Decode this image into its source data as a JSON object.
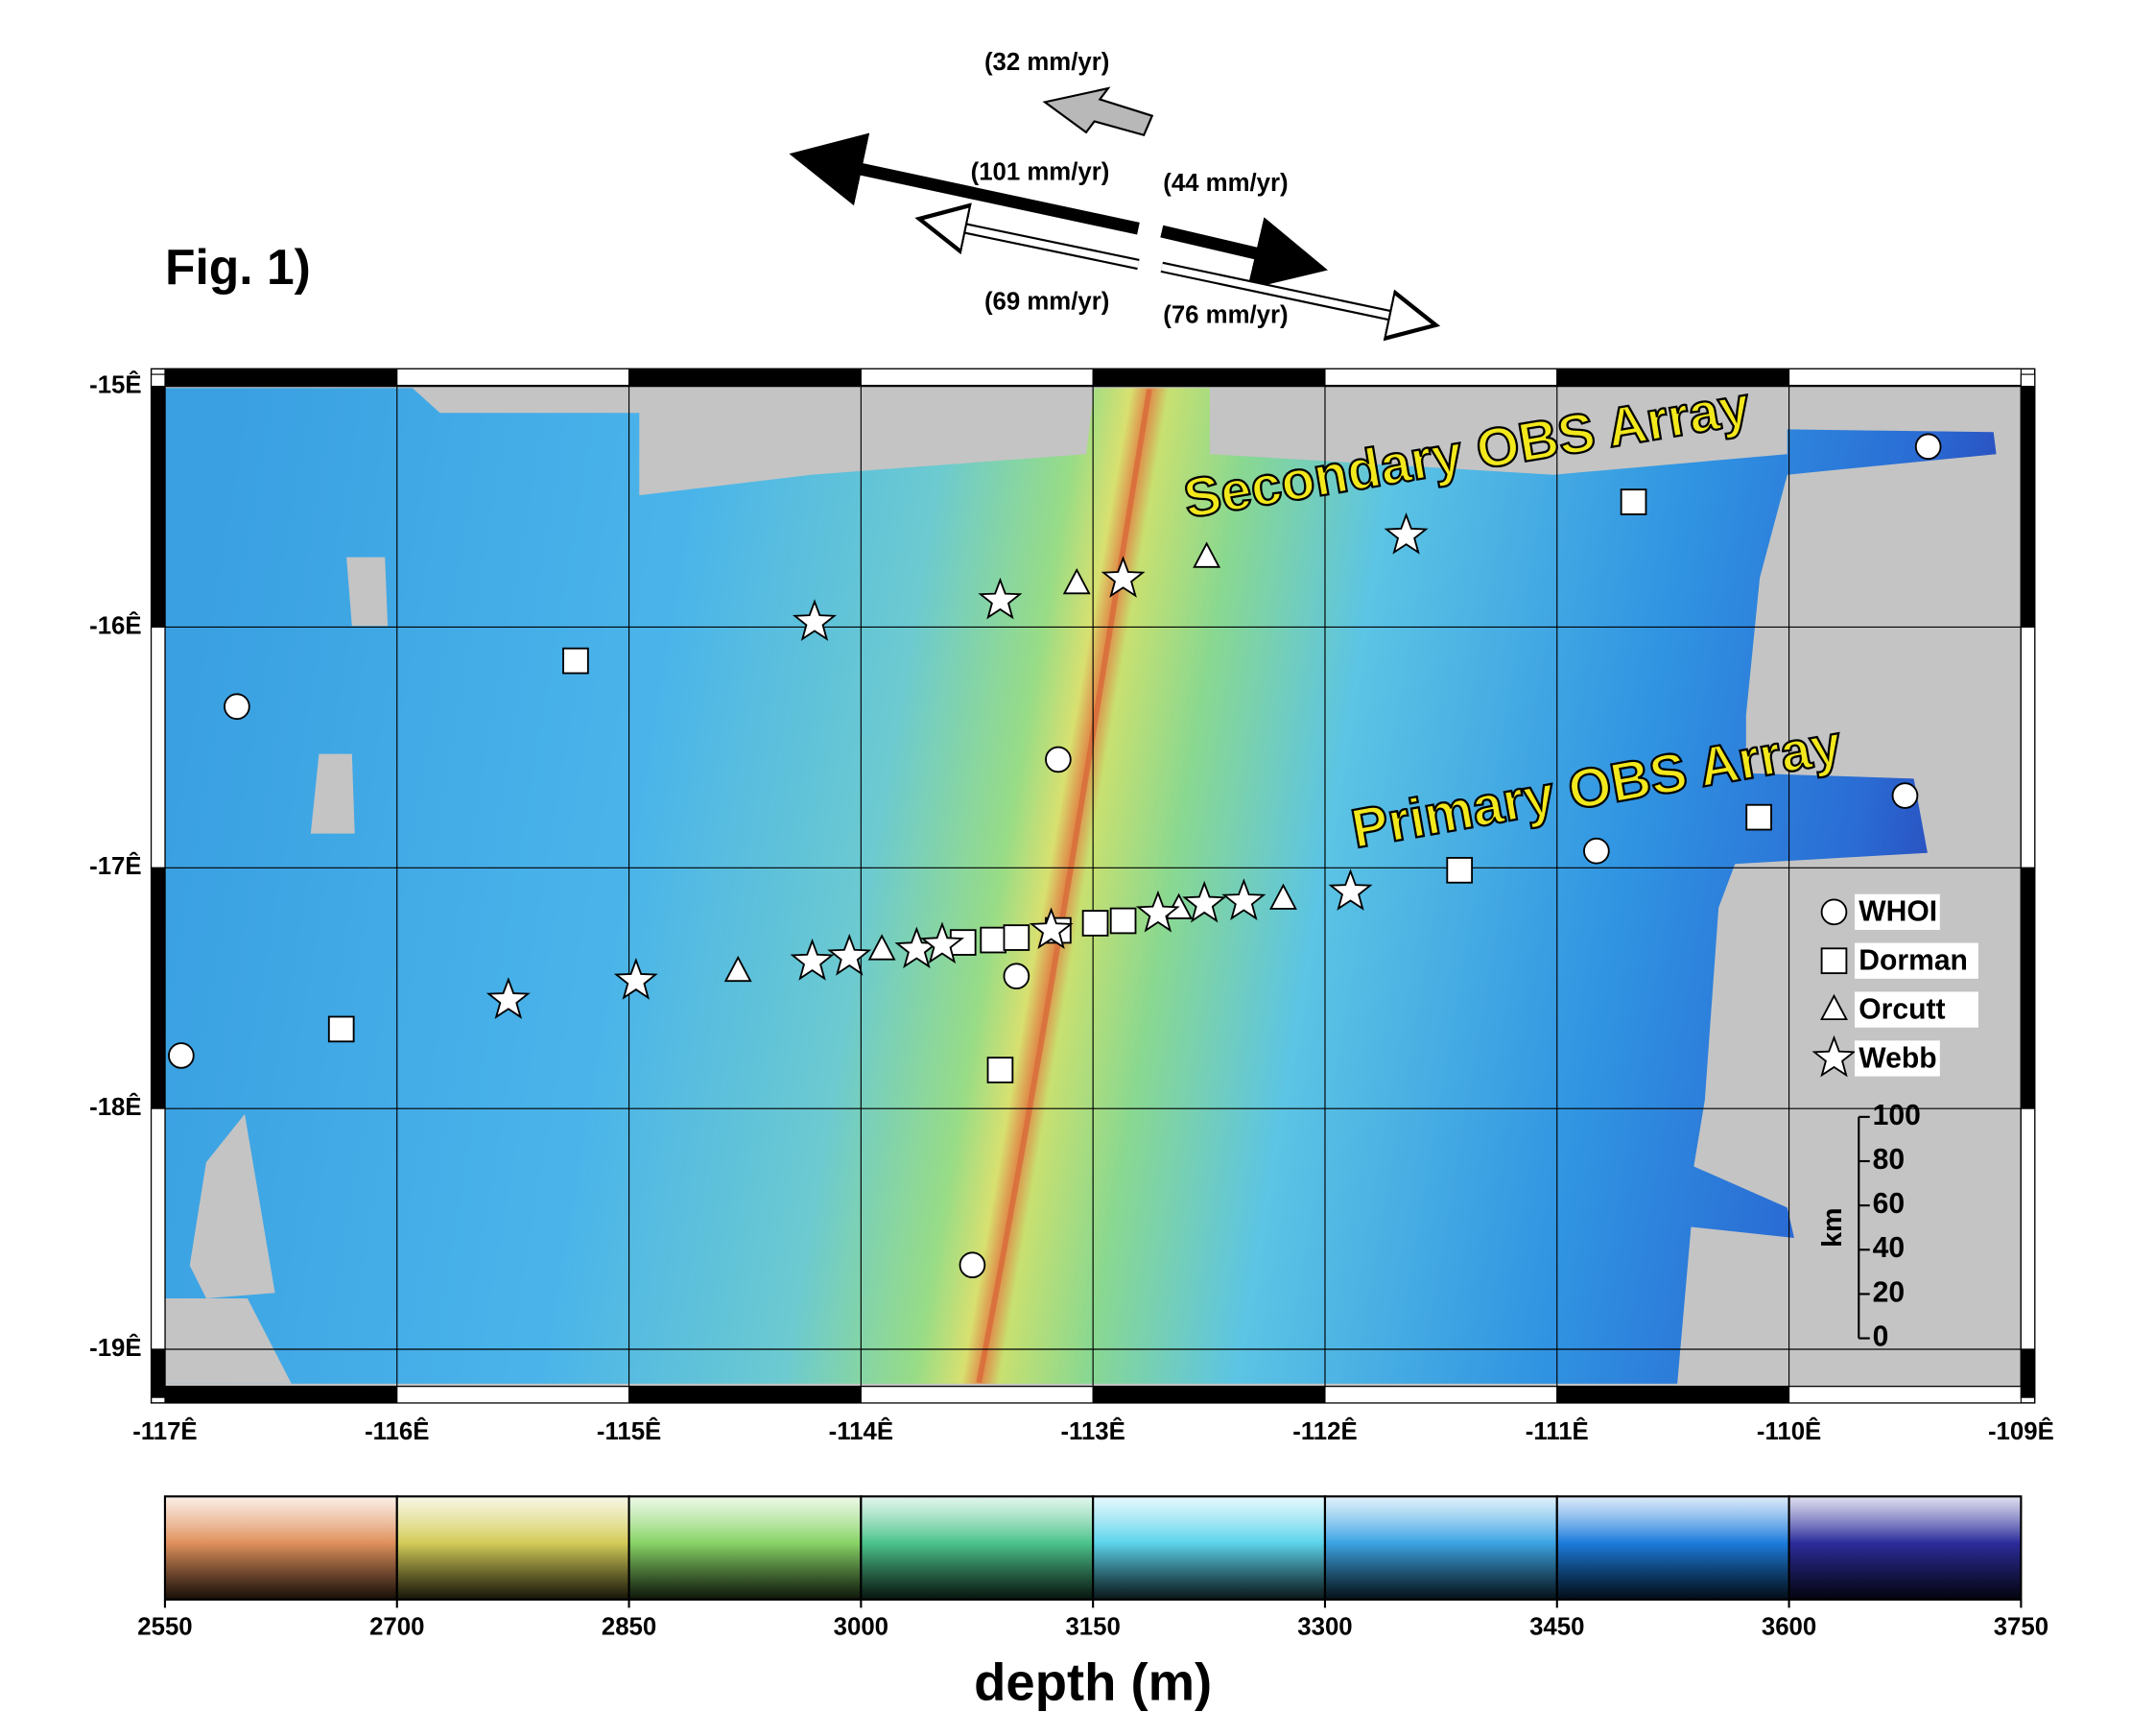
{
  "title": "Fig. 1)",
  "motion_labels": [
    "(32 mm/yr)",
    "(101 mm/yr)",
    "(44 mm/yr)",
    "(69 mm/yr)",
    "(76 mm/yr)"
  ],
  "map": {
    "xlim": [
      -117,
      -109
    ],
    "ylim": [
      -19.2,
      -14.95
    ],
    "xticks": [
      {
        "value": -117,
        "label": "-117Ê"
      },
      {
        "value": -116,
        "label": "-116Ê"
      },
      {
        "value": -115,
        "label": "-115Ê"
      },
      {
        "value": -114,
        "label": "-114Ê"
      },
      {
        "value": -113,
        "label": "-113Ê"
      },
      {
        "value": -112,
        "label": "-112Ê"
      },
      {
        "value": -111,
        "label": "-111Ê"
      },
      {
        "value": -110,
        "label": "-110Ê"
      },
      {
        "value": -109,
        "label": "-109Ê"
      }
    ],
    "yticks": [
      {
        "value": -15,
        "label": "-15Ê"
      },
      {
        "value": -16,
        "label": "-16Ê"
      },
      {
        "value": -17,
        "label": "-17Ê"
      },
      {
        "value": -18,
        "label": "-18Ê"
      },
      {
        "value": -19,
        "label": "-19Ê"
      }
    ],
    "annotations": [
      "Secondary OBS Array",
      "Primary OBS Array"
    ],
    "networks": [
      {
        "name": "WHOI",
        "marker": "circle",
        "stations": [
          {
            "lon": -116.69,
            "lat": -16.33
          },
          {
            "lon": -116.93,
            "lat": -17.78
          },
          {
            "lon": -113.15,
            "lat": -16.55
          },
          {
            "lon": -113.33,
            "lat": -17.45
          },
          {
            "lon": -113.52,
            "lat": -18.65
          },
          {
            "lon": -110.83,
            "lat": -16.93
          },
          {
            "lon": -109.5,
            "lat": -16.7
          },
          {
            "lon": -109.4,
            "lat": -15.25
          }
        ]
      },
      {
        "name": "Dorman",
        "marker": "square",
        "stations": [
          {
            "lon": -115.23,
            "lat": -16.14
          },
          {
            "lon": -116.24,
            "lat": -17.67
          },
          {
            "lon": -113.4,
            "lat": -17.84
          },
          {
            "lon": -113.56,
            "lat": -17.31
          },
          {
            "lon": -113.43,
            "lat": -17.3
          },
          {
            "lon": -113.33,
            "lat": -17.29
          },
          {
            "lon": -113.15,
            "lat": -17.26
          },
          {
            "lon": -112.99,
            "lat": -17.23
          },
          {
            "lon": -112.87,
            "lat": -17.22
          },
          {
            "lon": -111.42,
            "lat": -17.01
          },
          {
            "lon": -110.13,
            "lat": -16.79
          },
          {
            "lon": -110.67,
            "lat": -15.48
          }
        ]
      },
      {
        "name": "Orcutt",
        "marker": "triangle",
        "stations": [
          {
            "lon": -114.53,
            "lat": -17.43
          },
          {
            "lon": -113.91,
            "lat": -17.34
          },
          {
            "lon": -113.07,
            "lat": -15.82
          },
          {
            "lon": -112.51,
            "lat": -15.71
          },
          {
            "lon": -112.63,
            "lat": -17.17
          },
          {
            "lon": -112.18,
            "lat": -17.13
          }
        ]
      },
      {
        "name": "Webb",
        "marker": "star",
        "stations": [
          {
            "lon": -115.52,
            "lat": -17.55
          },
          {
            "lon": -114.97,
            "lat": -17.47
          },
          {
            "lon": -114.21,
            "lat": -17.39
          },
          {
            "lon": -114.05,
            "lat": -17.37
          },
          {
            "lon": -113.76,
            "lat": -17.34
          },
          {
            "lon": -113.65,
            "lat": -17.32
          },
          {
            "lon": -113.18,
            "lat": -17.26
          },
          {
            "lon": -112.72,
            "lat": -17.19
          },
          {
            "lon": -112.52,
            "lat": -17.15
          },
          {
            "lon": -112.35,
            "lat": -17.14
          },
          {
            "lon": -111.89,
            "lat": -17.1
          },
          {
            "lon": -114.2,
            "lat": -15.98
          },
          {
            "lon": -113.4,
            "lat": -15.89
          },
          {
            "lon": -112.87,
            "lat": -15.8
          },
          {
            "lon": -111.65,
            "lat": -15.62
          }
        ]
      }
    ],
    "scale_bar": {
      "label": "km",
      "ticks": [
        0,
        20,
        40,
        60,
        80,
        100
      ]
    }
  },
  "colorbar": {
    "label": "depth (m)",
    "ticks": [
      2550,
      2700,
      2850,
      3000,
      3150,
      3300,
      3450,
      3600,
      3750
    ],
    "colors": [
      "#e0905c",
      "#d4cc58",
      "#88d466",
      "#4cc48c",
      "#5cd4ec",
      "#3ca4e4",
      "#1c7cdc",
      "#2c2c9c"
    ]
  }
}
